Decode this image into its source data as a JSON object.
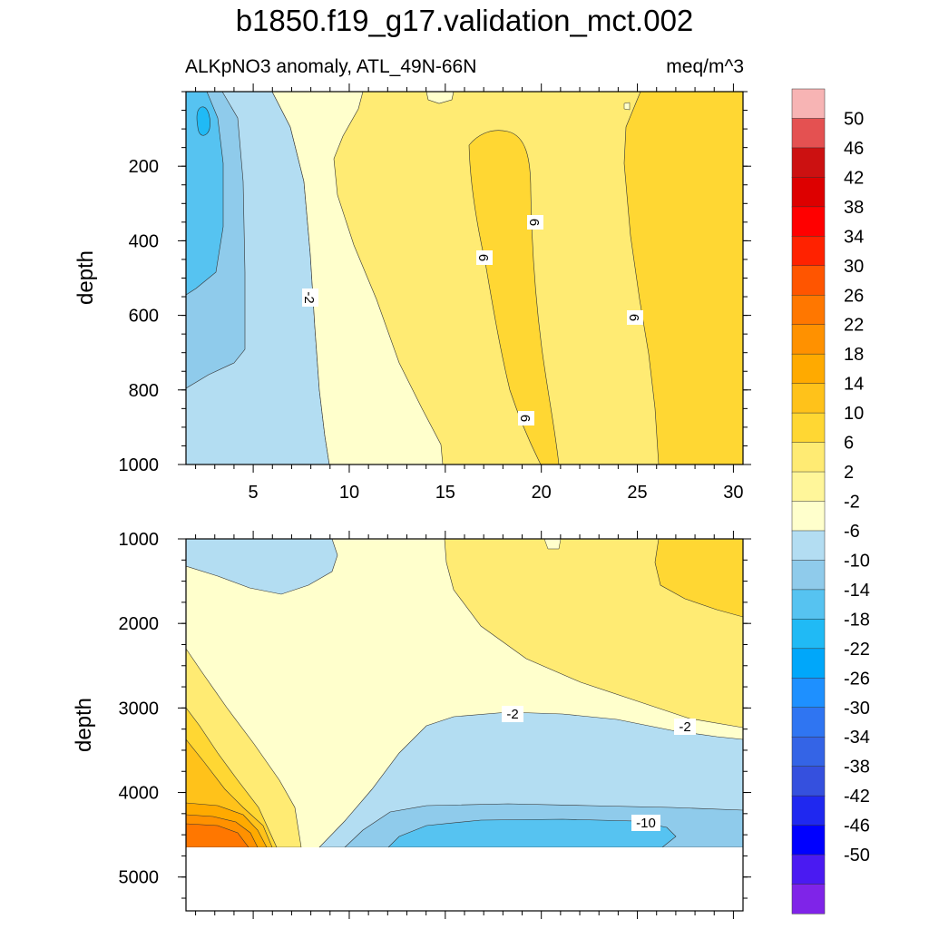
{
  "chart_data": {
    "type": "contour",
    "title": "b1850.f19_g17.validation_mct.002",
    "subtitle_left": "ALKpNO3 anomaly, ATL_49N-66N",
    "subtitle_right": "meq/m^3",
    "xlim": [
      1.5,
      30.5
    ],
    "xticks": [
      "5",
      "10",
      "15",
      "20",
      "25",
      "30"
    ],
    "upper_panel": {
      "ylabel": "depth",
      "ylim": [
        0,
        1000
      ],
      "yticks": [
        "200",
        "400",
        "600",
        "800",
        "1000"
      ],
      "contour_labels": [
        "-2",
        "6",
        "6",
        "6",
        "6"
      ]
    },
    "lower_panel": {
      "ylabel": "depth",
      "ylim": [
        1000,
        5400
      ],
      "yticks": [
        "1000",
        "2000",
        "3000",
        "4000",
        "5000"
      ],
      "contour_labels": [
        "-2",
        "-2",
        "-10"
      ],
      "missing_below_depth": 4620
    },
    "colorbar": {
      "levels": [
        "50",
        "46",
        "42",
        "38",
        "34",
        "30",
        "26",
        "22",
        "18",
        "14",
        "10",
        "6",
        "2",
        "-2",
        "-6",
        "-10",
        "-14",
        "-18",
        "-22",
        "-26",
        "-30",
        "-34",
        "-38",
        "-42",
        "-46",
        "-50"
      ],
      "colors": [
        "#F7B4B4",
        "#E45151",
        "#CC1111",
        "#DD0000",
        "#FF0000",
        "#FF2200",
        "#FF5500",
        "#FF7700",
        "#FF9100",
        "#FFAA00",
        "#FFC21A",
        "#FFD733",
        "#FFEB73",
        "#FFF69A",
        "#FFFFCC",
        "#B3DDF2",
        "#8FCBEB",
        "#56C3F1",
        "#20BAF5",
        "#00A7FA",
        "#1E90FF",
        "#2F75F2",
        "#3464E6",
        "#3550DE",
        "#1F28F0",
        "#0000FF",
        "#4A1AF2",
        "#7F24E8"
      ]
    }
  }
}
